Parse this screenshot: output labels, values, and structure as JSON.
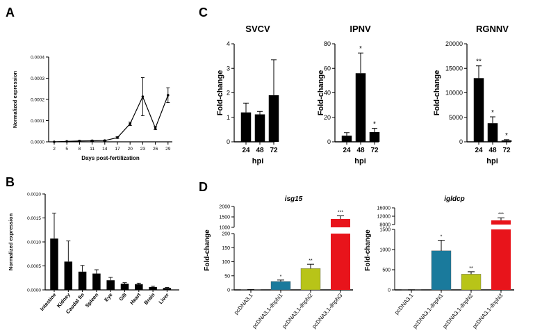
{
  "panels": {
    "A": "A",
    "B": "B",
    "C": "C",
    "D": "D"
  },
  "chart_data": [
    {
      "panel": "A",
      "type": "line",
      "xlabel": "Days post-fertilization",
      "ylabel": "Normalized expression",
      "categories": [
        "2",
        "5",
        "8",
        "11",
        "14",
        "17",
        "20",
        "23",
        "26",
        "29"
      ],
      "values": [
        0.0,
        2e-06,
        4e-06,
        5e-06,
        6e-06,
        2e-05,
        8.5e-05,
        0.000213,
        6.5e-05,
        0.00022
      ],
      "errors": [
        0.0,
        1e-06,
        2e-06,
        2e-06,
        2e-06,
        4e-06,
        8e-06,
        9e-05,
        8e-06,
        3.5e-05
      ],
      "ylim": [
        0,
        0.0004
      ],
      "yticks": [
        "0.0000",
        "0.0001",
        "0.0002",
        "0.0003",
        "0.0004"
      ],
      "color": "#000000"
    },
    {
      "panel": "B",
      "type": "bar",
      "xlabel": "",
      "ylabel": "Normalized expression",
      "categories": [
        "Intestine",
        "Kidney",
        "Caudal fin",
        "Spleen",
        "Eye",
        "Gill",
        "Heart",
        "Brain",
        "Liver"
      ],
      "values": [
        0.00107,
        0.00059,
        0.00038,
        0.00034,
        0.0002,
        0.00013,
        0.00012,
        6e-05,
        4e-05
      ],
      "errors": [
        0.00053,
        0.00043,
        0.00013,
        8e-05,
        6e-05,
        2e-05,
        2e-05,
        2e-05,
        1e-05
      ],
      "ylim": [
        0,
        0.002
      ],
      "yticks": [
        "0.0000",
        "0.0005",
        "0.0010",
        "0.0015",
        "0.0020"
      ],
      "color": "#000000"
    },
    {
      "panel": "C",
      "type": "bar",
      "title": "SVCV",
      "xlabel": "hpi",
      "ylabel": "Fold-change",
      "categories": [
        "24",
        "48",
        "72"
      ],
      "values": [
        1.2,
        1.12,
        1.9
      ],
      "errors": [
        0.38,
        0.12,
        1.45
      ],
      "significance": [
        "",
        "",
        ""
      ],
      "ylim": [
        0,
        4
      ],
      "yticks": [
        "0",
        "1",
        "2",
        "3",
        "4"
      ],
      "color": "#000000"
    },
    {
      "panel": "C",
      "type": "bar",
      "title": "IPNV",
      "xlabel": "hpi",
      "ylabel": "Fold-change",
      "categories": [
        "24",
        "48",
        "72"
      ],
      "values": [
        5,
        56,
        8
      ],
      "errors": [
        2.5,
        16.5,
        3
      ],
      "significance": [
        "",
        "*",
        "*"
      ],
      "ylim": [
        0,
        80
      ],
      "yticks": [
        "0",
        "20",
        "40",
        "60",
        "80"
      ],
      "color": "#000000"
    },
    {
      "panel": "C",
      "type": "bar",
      "title": "RGNNV",
      "xlabel": "hpi",
      "ylabel": "Fold-change",
      "categories": [
        "24",
        "48",
        "72"
      ],
      "values": [
        13000,
        3800,
        300
      ],
      "errors": [
        2500,
        1300,
        150
      ],
      "significance": [
        "**",
        "*",
        "*"
      ],
      "ylim": [
        0,
        20000
      ],
      "yticks": [
        "0",
        "5000",
        "10000",
        "15000",
        "20000"
      ],
      "color": "#000000"
    },
    {
      "panel": "D",
      "type": "bar",
      "title": "isg15",
      "xlabel": "",
      "ylabel": "Fold-change",
      "categories": [
        "pcDNA3.1",
        "pcDNA3.1-ifnphi1",
        "pcDNA3.1-ifnphi2",
        "pcDNA3.1-ifnphi3"
      ],
      "values": [
        1,
        30,
        76,
        1400
      ],
      "errors": [
        0.5,
        5,
        15,
        150
      ],
      "significance": [
        "",
        "*",
        "**",
        "***"
      ],
      "colors": [
        "#808080",
        "#1a7a9c",
        "#b8c418",
        "#e8141b"
      ],
      "broken_axis": {
        "lower_range": [
          0,
          200
        ],
        "lower_ticks": [
          "0",
          "50",
          "100",
          "150",
          "200"
        ],
        "upper_range": [
          1000,
          2000
        ],
        "upper_ticks": [
          "1000",
          "1500",
          "2000"
        ]
      }
    },
    {
      "panel": "D",
      "type": "bar",
      "title": "igldcp",
      "xlabel": "",
      "ylabel": "Fold-change",
      "categories": [
        "pcDNA3.1",
        "pcDNA3.1-ifnphi1",
        "pcDNA3.1-ifnphi2",
        "pcDNA3.1-ifnphi3"
      ],
      "values": [
        1,
        970,
        390,
        10000
      ],
      "errors": [
        0.5,
        260,
        60,
        1200
      ],
      "significance": [
        "",
        "*",
        "**",
        "***"
      ],
      "colors": [
        "#808080",
        "#1a7a9c",
        "#b8c418",
        "#e8141b"
      ],
      "broken_axis": {
        "lower_range": [
          0,
          1500
        ],
        "lower_ticks": [
          "0",
          "500",
          "1000",
          "1500"
        ],
        "upper_range": [
          8000,
          16000
        ],
        "upper_ticks": [
          "8000",
          "12000",
          "16000"
        ]
      }
    }
  ]
}
